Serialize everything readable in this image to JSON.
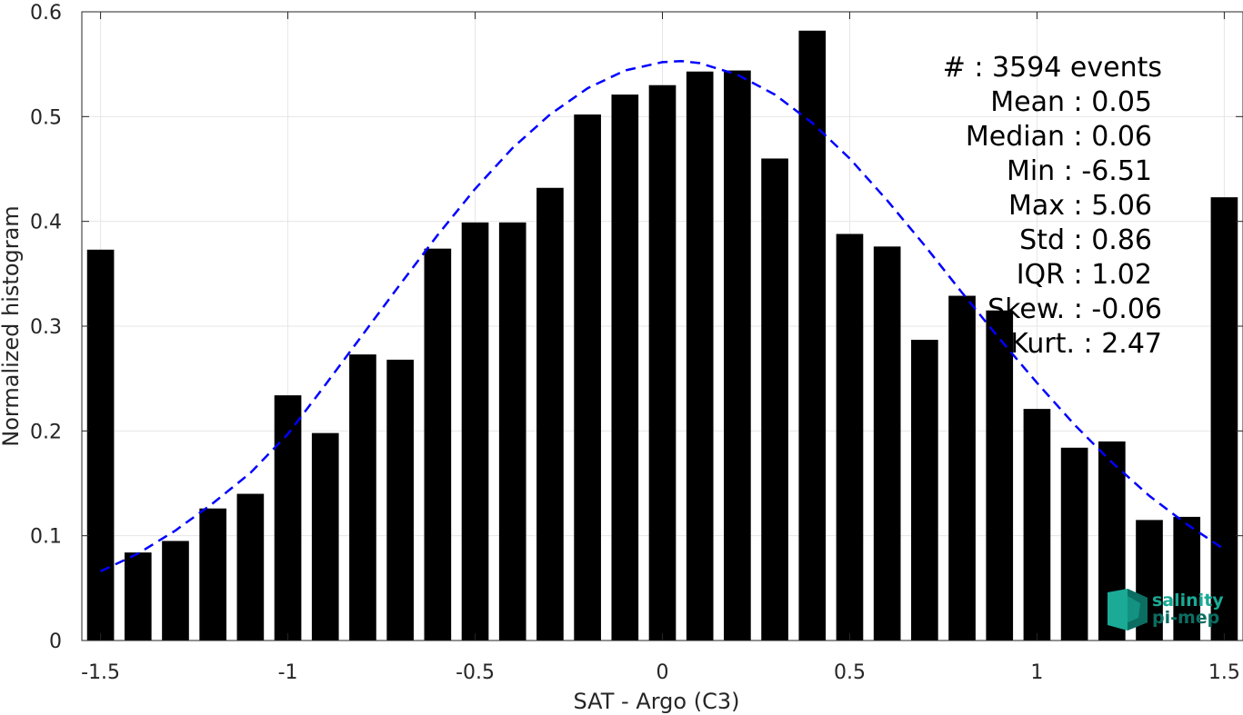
{
  "chart_data": {
    "type": "bar",
    "xlabel": "SAT - Argo (C3)",
    "ylabel": "Normalized histogram",
    "xlim": [
      -1.55,
      1.55
    ],
    "ylim": [
      0,
      0.6
    ],
    "xticks": [
      -1.5,
      -1,
      -0.5,
      0,
      0.5,
      1,
      1.5
    ],
    "xtick_labels": [
      "-1.5",
      "-1",
      "-0.5",
      "0",
      "0.5",
      "1",
      "1.5"
    ],
    "yticks": [
      0,
      0.1,
      0.2,
      0.3,
      0.4,
      0.5,
      0.6
    ],
    "ytick_labels": [
      "0",
      "0.1",
      "0.2",
      "0.3",
      "0.4",
      "0.5",
      "0.6"
    ],
    "grid": true,
    "bar_color": "#000000",
    "bars": {
      "x": [
        -1.5,
        -1.4,
        -1.3,
        -1.2,
        -1.1,
        -1.0,
        -0.9,
        -0.8,
        -0.7,
        -0.6,
        -0.5,
        -0.4,
        -0.3,
        -0.2,
        -0.1,
        0.0,
        0.1,
        0.2,
        0.3,
        0.4,
        0.5,
        0.6,
        0.7,
        0.8,
        0.9,
        1.0,
        1.1,
        1.2,
        1.3,
        1.4,
        1.5
      ],
      "values": [
        0.373,
        0.084,
        0.095,
        0.126,
        0.14,
        0.234,
        0.198,
        0.273,
        0.268,
        0.374,
        0.399,
        0.399,
        0.432,
        0.502,
        0.521,
        0.53,
        0.543,
        0.544,
        0.46,
        0.582,
        0.388,
        0.376,
        0.287,
        0.329,
        0.315,
        0.221,
        0.184,
        0.19,
        0.115,
        0.118,
        0.423
      ]
    },
    "fit_curve": {
      "style": "dashed",
      "color": "#0000ff",
      "x": [
        -1.5,
        -1.4,
        -1.3,
        -1.2,
        -1.1,
        -1.0,
        -0.9,
        -0.8,
        -0.7,
        -0.6,
        -0.5,
        -0.4,
        -0.3,
        -0.2,
        -0.1,
        0.0,
        0.05,
        0.1,
        0.2,
        0.3,
        0.4,
        0.5,
        0.6,
        0.7,
        0.8,
        0.9,
        1.0,
        1.1,
        1.2,
        1.3,
        1.4,
        1.5
      ],
      "values": [
        0.066,
        0.083,
        0.105,
        0.131,
        0.16,
        0.197,
        0.244,
        0.292,
        0.34,
        0.387,
        0.431,
        0.47,
        0.502,
        0.527,
        0.544,
        0.552,
        0.553,
        0.551,
        0.54,
        0.521,
        0.494,
        0.46,
        0.42,
        0.377,
        0.332,
        0.288,
        0.246,
        0.206,
        0.17,
        0.138,
        0.111,
        0.087
      ]
    },
    "annotations": [
      "#  : 3594 events",
      "Mean : 0.05",
      "Median : 0.06",
      "Min : -6.51",
      "Max : 5.06",
      "Std : 0.86",
      "IQR : 1.02",
      "Skew. : -0.06",
      "Kurt. : 2.47"
    ]
  },
  "logo": {
    "line1": "salinity",
    "line2": "pi-mep",
    "color": "#1aaa96",
    "color_dark": "#0c6e62"
  }
}
